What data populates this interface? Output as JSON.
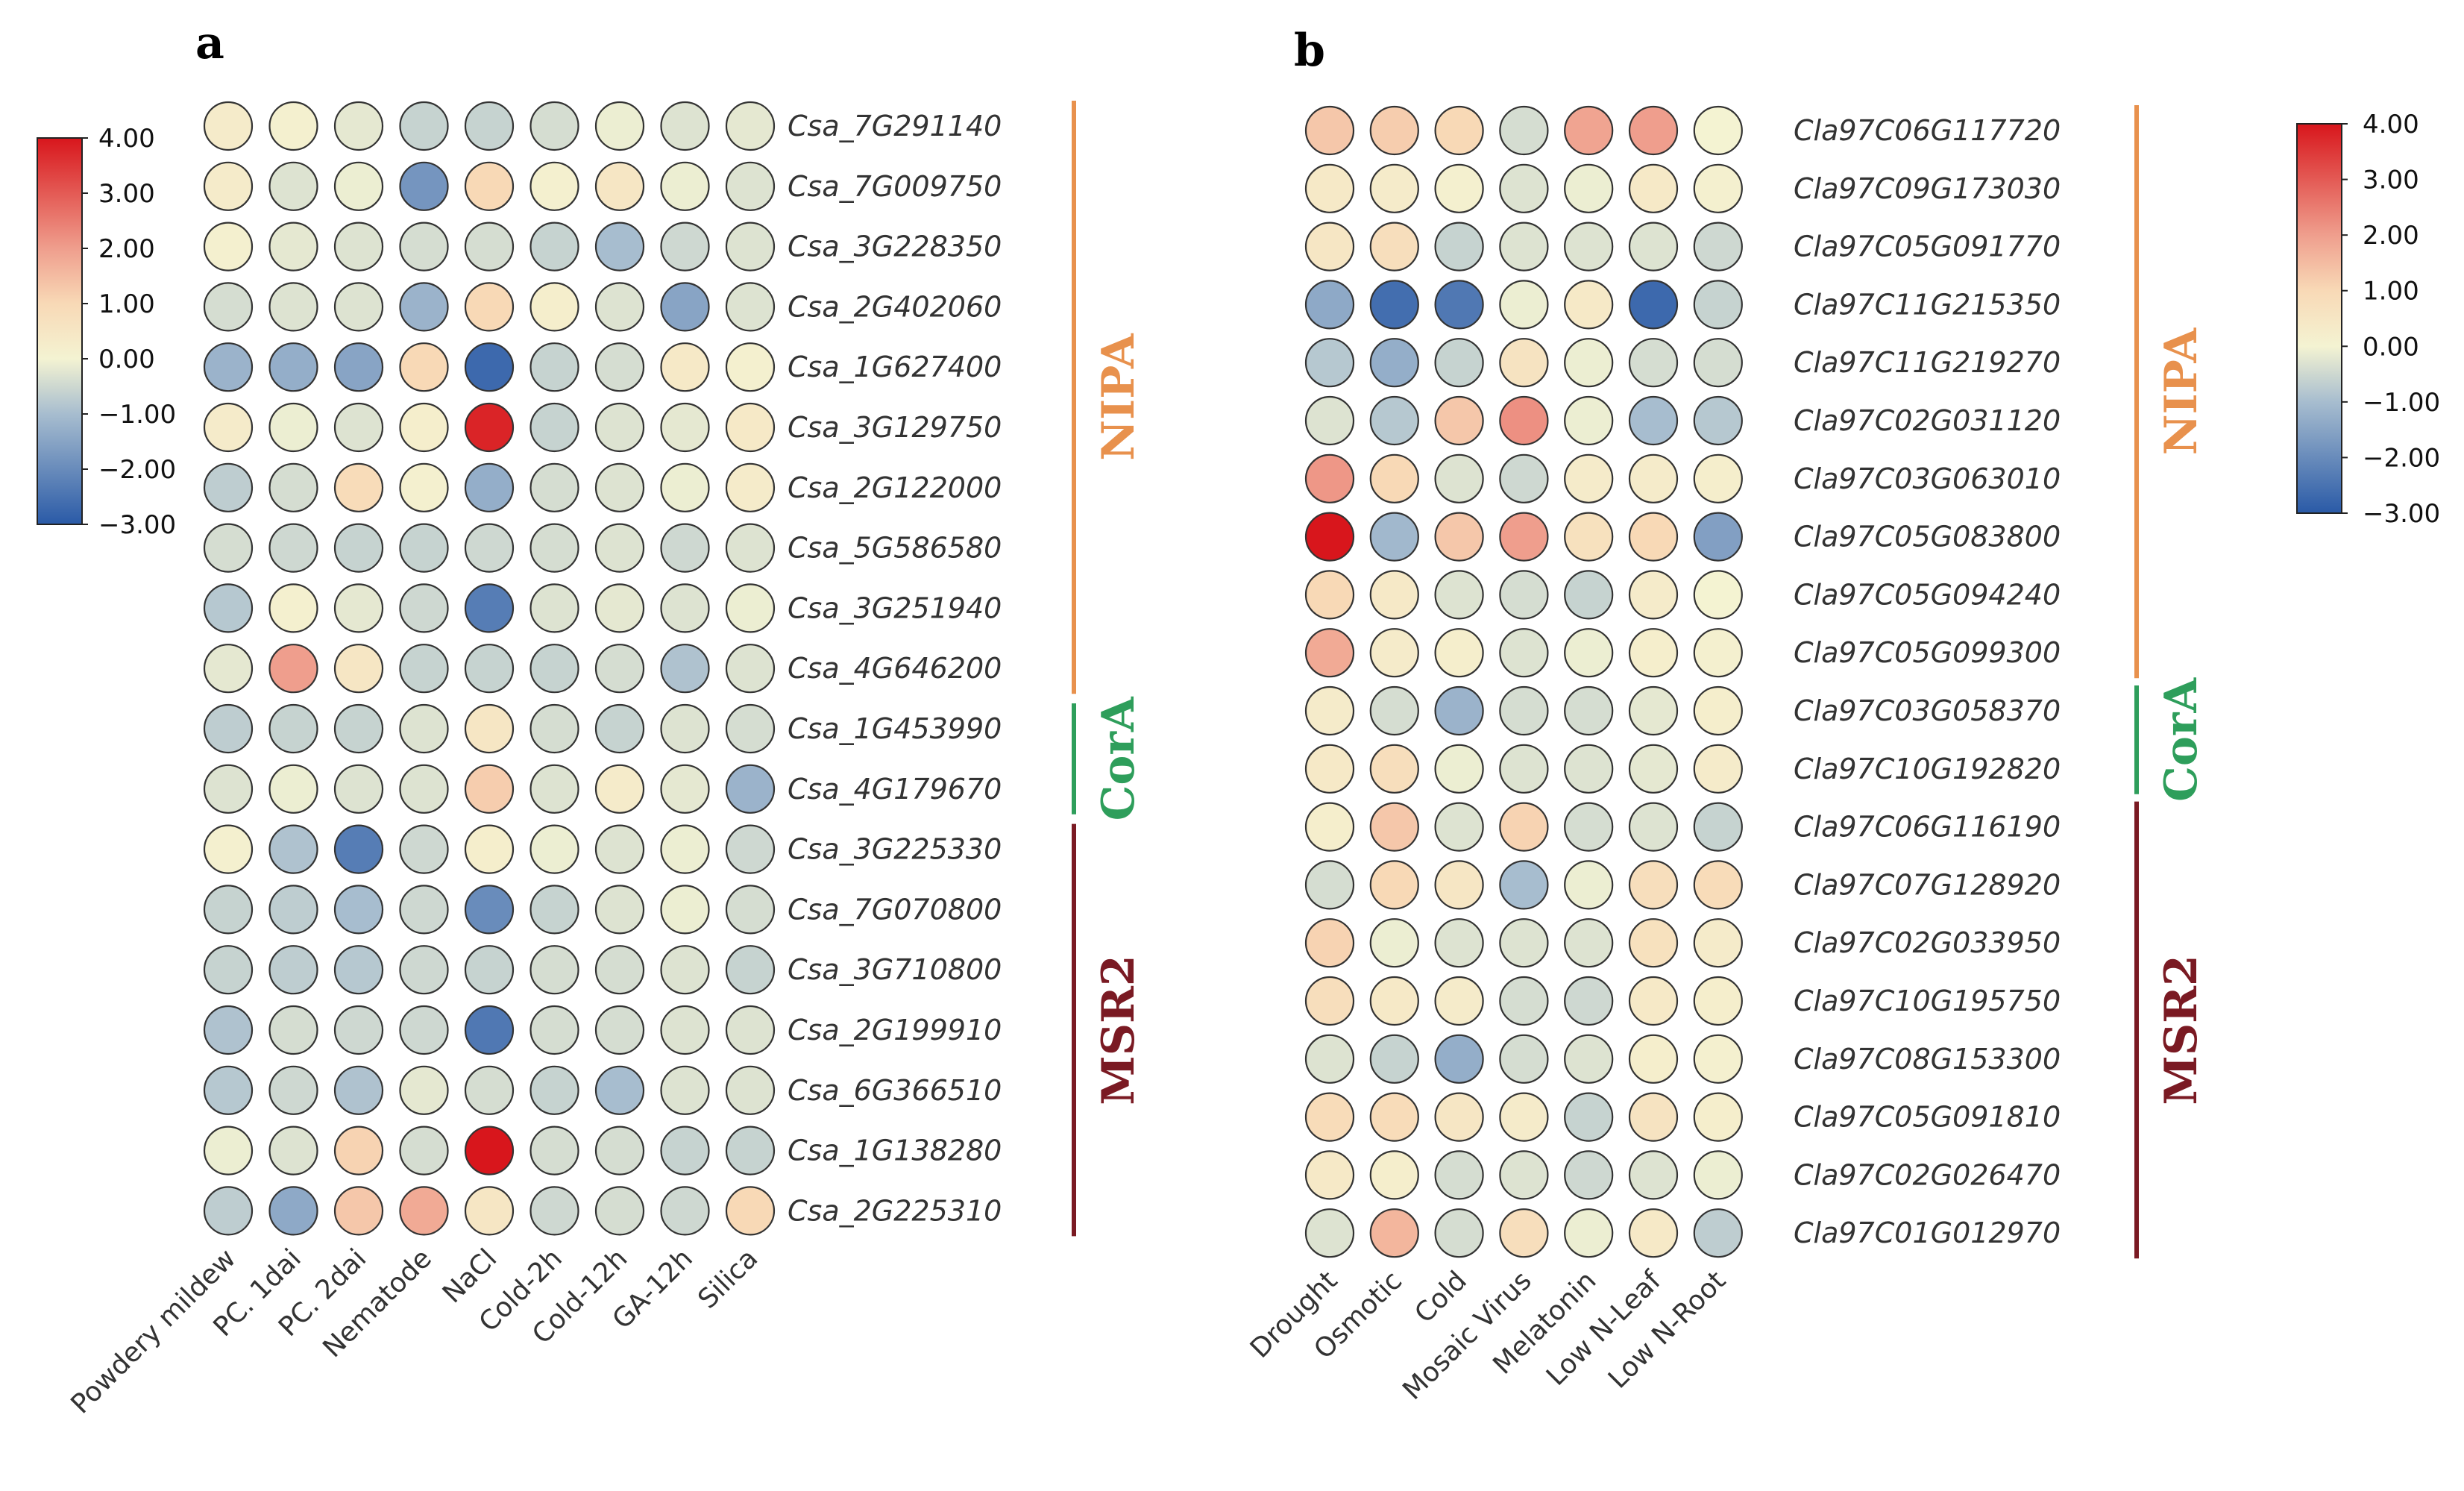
{
  "chart_data": [
    {
      "type": "heatmap",
      "panel": "a",
      "marker": "circle",
      "title": "",
      "xlabel": "",
      "ylabel": "",
      "conditions": [
        "Powdery mildew",
        "PC. 1dai",
        "PC. 2dai",
        "Nematode",
        "NaCl",
        "Cold-2h",
        "Cold-12h",
        "GA-12h",
        "Silica"
      ],
      "genes": [
        "Csa_7G291140",
        "Csa_7G009750",
        "Csa_3G228350",
        "Csa_2G402060",
        "Csa_1G627400",
        "Csa_3G129750",
        "Csa_2G122000",
        "Csa_5G586580",
        "Csa_3G251940",
        "Csa_4G646200",
        "Csa_1G453990",
        "Csa_4G179670",
        "Csa_3G225330",
        "Csa_7G070800",
        "Csa_3G710800",
        "Csa_2G199910",
        "Csa_6G366510",
        "Csa_1G138280",
        "Csa_2G225310"
      ],
      "values": [
        [
          0.3,
          0.1,
          -0.2,
          -0.6,
          -0.6,
          -0.4,
          -0.1,
          -0.3,
          -0.2
        ],
        [
          0.3,
          -0.3,
          -0.1,
          -1.8,
          1.0,
          0.1,
          0.5,
          -0.1,
          -0.3
        ],
        [
          0.1,
          -0.2,
          -0.3,
          -0.4,
          -0.4,
          -0.6,
          -1.0,
          -0.5,
          -0.3
        ],
        [
          -0.4,
          -0.3,
          -0.3,
          -1.2,
          1.0,
          0.2,
          -0.3,
          -1.5,
          -0.3
        ],
        [
          -1.2,
          -1.3,
          -1.5,
          1.0,
          -2.7,
          -0.6,
          -0.4,
          0.4,
          0.1
        ],
        [
          0.3,
          -0.1,
          -0.3,
          0.2,
          3.8,
          -0.6,
          -0.3,
          -0.2,
          0.4
        ],
        [
          -0.7,
          -0.4,
          0.9,
          0.1,
          -1.3,
          -0.4,
          -0.3,
          -0.1,
          0.3
        ],
        [
          -0.4,
          -0.5,
          -0.6,
          -0.6,
          -0.5,
          -0.4,
          -0.3,
          -0.5,
          -0.3
        ],
        [
          -0.8,
          0.1,
          -0.2,
          -0.5,
          -2.3,
          -0.3,
          -0.2,
          -0.3,
          -0.1
        ],
        [
          -0.2,
          2.0,
          0.5,
          -0.6,
          -0.6,
          -0.6,
          -0.4,
          -0.9,
          -0.3
        ],
        [
          -0.7,
          -0.6,
          -0.6,
          -0.3,
          0.5,
          -0.4,
          -0.6,
          -0.3,
          -0.4
        ],
        [
          -0.3,
          -0.1,
          -0.3,
          -0.3,
          1.2,
          -0.3,
          0.3,
          -0.2,
          -1.2
        ],
        [
          0.1,
          -0.9,
          -2.3,
          -0.5,
          0.2,
          -0.1,
          -0.3,
          -0.1,
          -0.5
        ],
        [
          -0.6,
          -0.7,
          -1.0,
          -0.5,
          -2.0,
          -0.6,
          -0.3,
          -0.1,
          -0.4
        ],
        [
          -0.6,
          -0.7,
          -0.8,
          -0.5,
          -0.6,
          -0.4,
          -0.4,
          -0.3,
          -0.6
        ],
        [
          -0.9,
          -0.4,
          -0.5,
          -0.5,
          -2.4,
          -0.4,
          -0.4,
          -0.3,
          -0.3
        ],
        [
          -0.8,
          -0.5,
          -0.9,
          -0.2,
          -0.4,
          -0.6,
          -1.0,
          -0.3,
          -0.3
        ],
        [
          -0.1,
          -0.3,
          1.1,
          -0.4,
          4.0,
          -0.4,
          -0.4,
          -0.6,
          -0.6
        ],
        [
          -0.7,
          -1.4,
          1.3,
          1.8,
          0.5,
          -0.5,
          -0.4,
          -0.5,
          1.0
        ]
      ],
      "groups": [
        {
          "name": "NIPA",
          "first": 0,
          "last": 9,
          "color": "#E8914D"
        },
        {
          "name": "CorA",
          "first": 10,
          "last": 11,
          "color": "#2E9E5B"
        },
        {
          "name": "MSR2",
          "first": 12,
          "last": 18,
          "color": "#7A1A23"
        }
      ],
      "colorbar": {
        "min": -3.0,
        "max": 4.0,
        "ticks": [
          "4.00",
          "3.00",
          "2.00",
          "1.00",
          "0.00",
          "−1.00",
          "−2.00",
          "−3.00"
        ],
        "stops": [
          {
            "v": -3.0,
            "c": "#2A5AA7"
          },
          {
            "v": -1.0,
            "c": "#A7BDCF"
          },
          {
            "v": 0.0,
            "c": "#F4F3D2"
          },
          {
            "v": 1.0,
            "c": "#F8D9B6"
          },
          {
            "v": 2.0,
            "c": "#EF9E8D"
          },
          {
            "v": 4.0,
            "c": "#D8161C"
          }
        ]
      }
    },
    {
      "type": "heatmap",
      "panel": "b",
      "marker": "circle",
      "title": "",
      "xlabel": "",
      "ylabel": "",
      "conditions": [
        "Drought",
        "Osmotic",
        "Cold",
        "Mosaic Virus",
        "Melatonin",
        "Low N-Leaf",
        "Low N-Root"
      ],
      "genes": [
        "Cla97C06G117720",
        "Cla97C09G173030",
        "Cla97C05G091770",
        "Cla97C11G215350",
        "Cla97C11G219270",
        "Cla97C02G031120",
        "Cla97C03G063010",
        "Cla97C05G083800",
        "Cla97C05G094240",
        "Cla97C05G099300",
        "Cla97C03G058370",
        "Cla97C10G192820",
        "Cla97C06G116190",
        "Cla97C07G128920",
        "Cla97C02G033950",
        "Cla97C10G195750",
        "Cla97C08G153300",
        "Cla97C05G091810",
        "Cla97C02G026470",
        "Cla97C01G012970"
      ],
      "values": [
        [
          1.3,
          1.2,
          1.0,
          -0.4,
          1.9,
          2.0,
          0.0
        ],
        [
          0.4,
          0.3,
          0.1,
          -0.3,
          -0.1,
          0.4,
          0.1
        ],
        [
          0.5,
          0.8,
          -0.6,
          -0.3,
          -0.3,
          -0.3,
          -0.5
        ],
        [
          -1.4,
          -2.6,
          -2.4,
          -0.1,
          0.4,
          -2.7,
          -0.6
        ],
        [
          -0.8,
          -1.3,
          -0.6,
          0.6,
          -0.1,
          -0.4,
          -0.4
        ],
        [
          -0.3,
          -0.8,
          1.3,
          2.2,
          -0.1,
          -1.0,
          -0.8
        ],
        [
          2.1,
          1.0,
          -0.3,
          -0.5,
          0.3,
          0.3,
          0.2
        ],
        [
          4.0,
          -1.1,
          1.3,
          2.0,
          0.7,
          1.0,
          -1.6
        ],
        [
          1.0,
          0.4,
          -0.3,
          -0.4,
          -0.6,
          0.3,
          0.0
        ],
        [
          1.8,
          0.3,
          0.2,
          -0.3,
          -0.1,
          0.2,
          0.1
        ],
        [
          0.3,
          -0.4,
          -1.2,
          -0.4,
          -0.4,
          -0.2,
          0.2
        ],
        [
          0.4,
          0.8,
          -0.1,
          -0.3,
          -0.3,
          -0.2,
          0.3
        ],
        [
          0.2,
          1.3,
          -0.3,
          1.1,
          -0.4,
          -0.3,
          -0.6
        ],
        [
          -0.4,
          1.0,
          0.5,
          -1.0,
          -0.1,
          0.8,
          0.9
        ],
        [
          1.1,
          -0.1,
          -0.3,
          -0.3,
          -0.3,
          0.7,
          0.3
        ],
        [
          0.8,
          0.4,
          0.3,
          -0.4,
          -0.5,
          0.4,
          0.2
        ],
        [
          -0.3,
          -0.6,
          -1.3,
          -0.4,
          -0.3,
          0.2,
          0.1
        ],
        [
          0.9,
          0.9,
          0.5,
          0.3,
          -0.6,
          0.6,
          0.2
        ],
        [
          0.4,
          0.2,
          -0.4,
          -0.3,
          -0.5,
          -0.3,
          -0.1
        ],
        [
          -0.3,
          1.6,
          -0.4,
          0.8,
          -0.1,
          0.4,
          -0.7
        ]
      ],
      "groups": [
        {
          "name": "NIPA",
          "first": 0,
          "last": 9,
          "color": "#E8914D"
        },
        {
          "name": "CorA",
          "first": 10,
          "last": 11,
          "color": "#2E9E5B"
        },
        {
          "name": "MSR2",
          "first": 12,
          "last": 19,
          "color": "#7A1A23"
        }
      ],
      "colorbar": {
        "min": -3.0,
        "max": 4.0,
        "ticks": [
          "4.00",
          "3.00",
          "2.00",
          "1.00",
          "0.00",
          "−1.00",
          "−2.00",
          "−3.00"
        ],
        "stops": [
          {
            "v": -3.0,
            "c": "#2A5AA7"
          },
          {
            "v": -1.0,
            "c": "#A7BDCF"
          },
          {
            "v": 0.0,
            "c": "#F4F3D2"
          },
          {
            "v": 1.0,
            "c": "#F8D9B6"
          },
          {
            "v": 2.0,
            "c": "#EF9E8D"
          },
          {
            "v": 4.0,
            "c": "#D8161C"
          }
        ]
      }
    }
  ]
}
